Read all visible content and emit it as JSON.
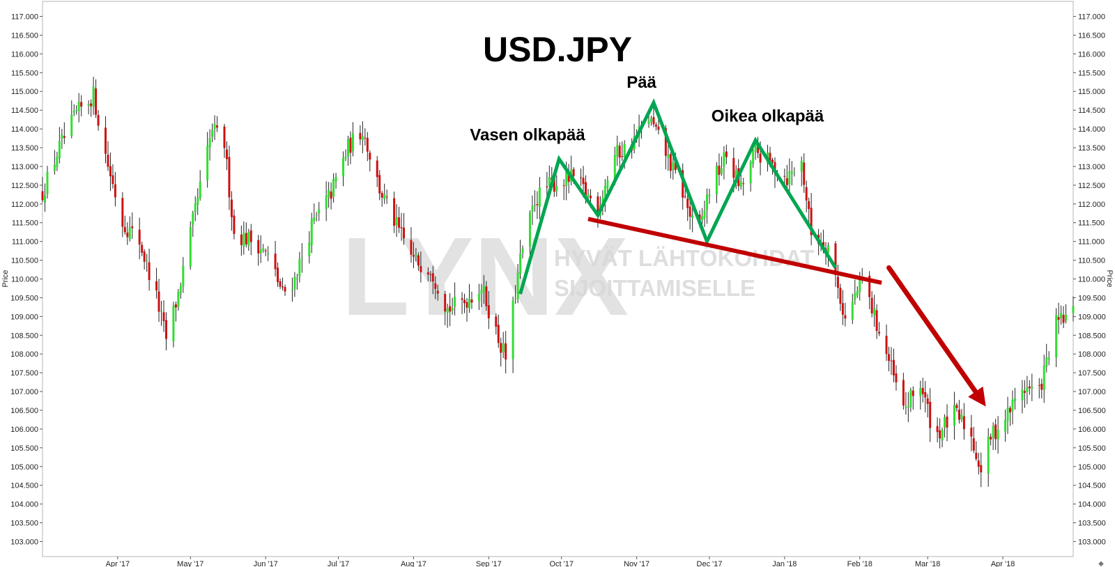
{
  "chart_data": {
    "type": "candlestick",
    "title": "USD.JPY",
    "ylabel_left": "Price",
    "ylabel_right": "Price",
    "ylim": [
      102.6,
      117.4
    ],
    "y_ticks": [
      "103.000",
      "103.500",
      "104.000",
      "104.500",
      "105.000",
      "105.500",
      "106.000",
      "106.500",
      "107.000",
      "107.500",
      "108.000",
      "108.500",
      "109.000",
      "109.500",
      "110.000",
      "110.500",
      "111.000",
      "111.500",
      "112.000",
      "112.500",
      "113.000",
      "113.500",
      "114.000",
      "114.500",
      "115.000",
      "115.500",
      "116.000",
      "116.500",
      "117.000"
    ],
    "x_range": [
      "2017-03-01",
      "2018-04-30"
    ],
    "x_ticks": [
      {
        "label": "Apr '17",
        "date": "2017-04-01"
      },
      {
        "label": "May '17",
        "date": "2017-05-01"
      },
      {
        "label": "Jun '17",
        "date": "2017-06-01"
      },
      {
        "label": "Jul '17",
        "date": "2017-07-01"
      },
      {
        "label": "Aug '17",
        "date": "2017-08-01"
      },
      {
        "label": "Sep '17",
        "date": "2017-09-01"
      },
      {
        "label": "Oct '17",
        "date": "2017-10-01"
      },
      {
        "label": "Nov '17",
        "date": "2017-11-01"
      },
      {
        "label": "Dec '17",
        "date": "2017-12-01"
      },
      {
        "label": "Jan '18",
        "date": "2018-01-01"
      },
      {
        "label": "Feb '18",
        "date": "2018-02-01"
      },
      {
        "label": "Mar '18",
        "date": "2018-03-01"
      },
      {
        "label": "Apr '18",
        "date": "2018-04-01"
      }
    ],
    "close_path": [
      [
        "2017-03-01",
        112.3
      ],
      [
        "2017-03-08",
        113.5
      ],
      [
        "2017-03-15",
        114.4
      ],
      [
        "2017-03-22",
        114.9
      ],
      [
        "2017-03-27",
        113.3
      ],
      [
        "2017-04-03",
        111.5
      ],
      [
        "2017-04-10",
        111.0
      ],
      [
        "2017-04-17",
        109.5
      ],
      [
        "2017-04-21",
        108.4
      ],
      [
        "2017-04-26",
        109.6
      ],
      [
        "2017-05-01",
        111.2
      ],
      [
        "2017-05-10",
        114.0
      ],
      [
        "2017-05-15",
        113.6
      ],
      [
        "2017-05-19",
        111.2
      ],
      [
        "2017-05-28",
        111.0
      ],
      [
        "2017-06-03",
        110.5
      ],
      [
        "2017-06-08",
        109.6
      ],
      [
        "2017-06-13",
        110.0
      ],
      [
        "2017-06-20",
        111.4
      ],
      [
        "2017-06-28",
        112.3
      ],
      [
        "2017-07-05",
        113.5
      ],
      [
        "2017-07-11",
        114.0
      ],
      [
        "2017-07-18",
        112.4
      ],
      [
        "2017-07-25",
        111.4
      ],
      [
        "2017-08-01",
        110.5
      ],
      [
        "2017-08-08",
        110.3
      ],
      [
        "2017-08-15",
        109.2
      ],
      [
        "2017-08-22",
        109.4
      ],
      [
        "2017-08-29",
        109.8
      ],
      [
        "2017-09-05",
        108.4
      ],
      [
        "2017-09-08",
        107.9
      ],
      [
        "2017-09-14",
        110.5
      ],
      [
        "2017-09-20",
        112.1
      ],
      [
        "2017-09-26",
        112.5
      ],
      [
        "2017-10-06",
        112.7
      ],
      [
        "2017-10-16",
        111.9
      ],
      [
        "2017-10-23",
        113.3
      ],
      [
        "2017-10-30",
        113.6
      ],
      [
        "2017-11-06",
        114.3
      ],
      [
        "2017-11-12",
        113.5
      ],
      [
        "2017-11-20",
        112.3
      ],
      [
        "2017-11-26",
        111.1
      ],
      [
        "2017-12-01",
        112.4
      ],
      [
        "2017-12-08",
        113.3
      ],
      [
        "2017-12-14",
        112.4
      ],
      [
        "2017-12-20",
        113.4
      ],
      [
        "2018-01-02",
        112.7
      ],
      [
        "2018-01-08",
        113.1
      ],
      [
        "2018-01-12",
        111.2
      ],
      [
        "2018-01-19",
        110.9
      ],
      [
        "2018-01-26",
        108.9
      ],
      [
        "2018-02-02",
        110.0
      ],
      [
        "2018-02-08",
        108.8
      ],
      [
        "2018-02-13",
        107.8
      ],
      [
        "2018-02-19",
        106.5
      ],
      [
        "2018-02-26",
        107.2
      ],
      [
        "2018-03-04",
        105.8
      ],
      [
        "2018-03-12",
        106.4
      ],
      [
        "2018-03-18",
        106.0
      ],
      [
        "2018-03-23",
        104.9
      ],
      [
        "2018-03-27",
        105.8
      ],
      [
        "2018-04-02",
        106.3
      ],
      [
        "2018-04-09",
        107.1
      ],
      [
        "2018-04-16",
        107.0
      ],
      [
        "2018-04-23",
        108.8
      ],
      [
        "2018-04-30",
        109.1
      ]
    ],
    "annotations": [
      {
        "text": "Vasen olkapää",
        "date": "2017-09-17",
        "price": 113.7
      },
      {
        "text": "Pää",
        "date": "2017-11-03",
        "price": 115.1
      },
      {
        "text": "Oikea olkapää",
        "date": "2017-12-25",
        "price": 114.2
      }
    ],
    "pattern_line": {
      "color": "#00a651",
      "points": [
        [
          "2017-09-14",
          109.6
        ],
        [
          "2017-09-30",
          113.2
        ],
        [
          "2017-10-16",
          111.7
        ],
        [
          "2017-11-08",
          114.7
        ],
        [
          "2017-11-30",
          111.0
        ],
        [
          "2017-12-20",
          113.7
        ],
        [
          "2018-01-22",
          110.3
        ]
      ]
    },
    "neckline": {
      "color": "#c00000",
      "points": [
        [
          "2017-10-12",
          111.6
        ],
        [
          "2018-02-10",
          109.9
        ]
      ]
    },
    "trend_arrow": {
      "color": "#c00000",
      "points": [
        [
          "2018-02-13",
          110.3
        ],
        [
          "2018-03-25",
          106.6
        ]
      ]
    },
    "colors": {
      "up": "#33dd33",
      "down": "#cc1111",
      "wick": "#222222"
    }
  },
  "watermark": {
    "brand": "LYNX",
    "line1": "HYVÄT LÄHTÖKOHDAT",
    "line2": "SIJOITTAMISELLE"
  }
}
